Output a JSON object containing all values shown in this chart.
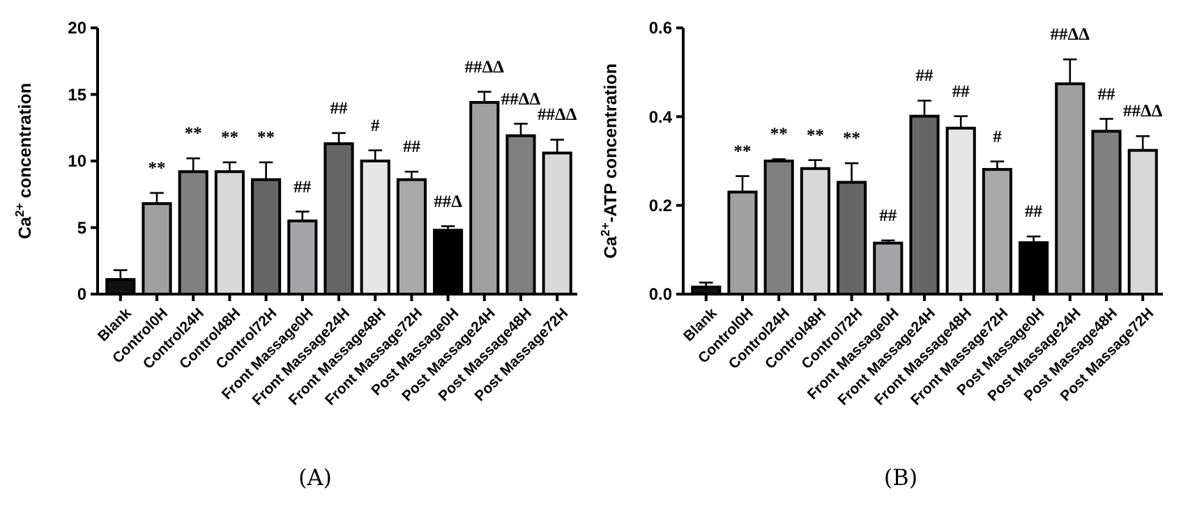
{
  "chart_data": [
    {
      "type": "bar",
      "title": "(A)",
      "ylabel": "Ca$^{2+}$ concentration",
      "categories": [
        "Blank",
        "Control0H",
        "Control24H",
        "Control48H",
        "Control72H",
        "Front Massage0H",
        "Front Massage24H",
        "Front Massage48H",
        "Front Massage72H",
        "Post Massage0H",
        "Post Massage24H",
        "Post Massage48H",
        "Post Massage72H"
      ],
      "values": [
        1.1,
        6.8,
        9.2,
        9.2,
        8.6,
        5.5,
        11.3,
        10.0,
        8.6,
        4.8,
        14.4,
        11.9,
        10.6
      ],
      "errors": [
        0.7,
        0.8,
        1.0,
        0.7,
        1.3,
        0.7,
        0.8,
        0.8,
        0.6,
        0.3,
        0.8,
        0.9,
        1.0
      ],
      "colors": [
        "#111111",
        "#a0a0a0",
        "#808080",
        "#d8d8d8",
        "#666666",
        "#a3a3a8",
        "#666666",
        "#e6e6e6",
        "#a8a8a8",
        "#000000",
        "#a0a0a0",
        "#808080",
        "#d8d8d8"
      ],
      "ylim": [
        0,
        20
      ],
      "yticks": [
        0,
        5,
        10,
        15,
        20
      ],
      "grid": false,
      "annotations": [
        "**",
        "**",
        "**",
        "**",
        "##",
        "##",
        "#",
        "##",
        "##Δ",
        "##ΔΔ",
        "##ΔΔ",
        "##ΔΔ"
      ]
    },
    {
      "type": "bar",
      "title": "(B)",
      "ylabel": "Ca$^{2+}$-ATP concentration",
      "categories": [
        "Blank",
        "Control0H",
        "Control24H",
        "Control48H",
        "Control72H",
        "Front Massage0H",
        "Front Massage24H",
        "Front Massage48H",
        "Front Massage72H",
        "Post Massage0H",
        "Post Massage24H",
        "Post Massage48H",
        "Post Massage72H"
      ],
      "values": [
        0.016,
        0.23,
        0.3,
        0.283,
        0.252,
        0.115,
        0.401,
        0.374,
        0.281,
        0.116,
        0.474,
        0.367,
        0.324
      ],
      "errors": [
        0.01,
        0.036,
        0.004,
        0.019,
        0.043,
        0.006,
        0.035,
        0.027,
        0.018,
        0.014,
        0.055,
        0.028,
        0.032
      ],
      "colors": [
        "#111111",
        "#a0a0a0",
        "#808080",
        "#d8d8d8",
        "#666666",
        "#a3a3a8",
        "#666666",
        "#e6e6e6",
        "#a8a8a8",
        "#000000",
        "#a0a0a0",
        "#808080",
        "#d8d8d8"
      ],
      "ylim": [
        0,
        0.6
      ],
      "yticks": [
        {
          "value": 0,
          "label": "0.0"
        },
        {
          "value": 0.2,
          "label": "0.2"
        },
        {
          "value": 0.4,
          "label": "0.4"
        },
        {
          "value": 0.6,
          "label": "0.6"
        }
      ],
      "grid": false,
      "annotations": [
        "**",
        "**",
        "**",
        "**",
        "##",
        "##",
        "##",
        "#",
        "##",
        "##ΔΔ",
        "##",
        "##ΔΔ"
      ]
    }
  ]
}
